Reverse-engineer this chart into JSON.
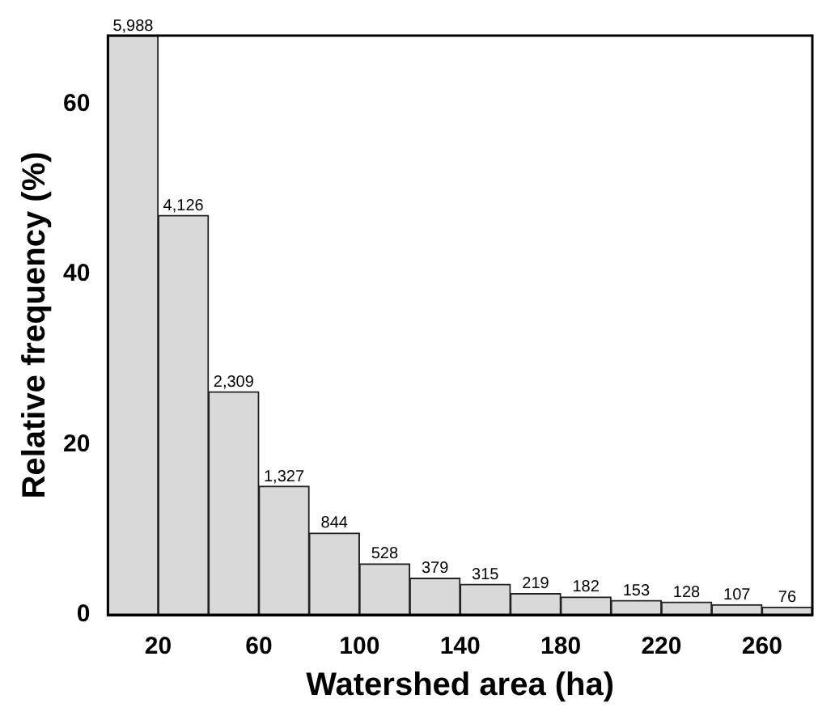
{
  "chart_data": {
    "type": "histogram",
    "xlabel": "Watershed area (ha)",
    "ylabel": "Relative frequency (%)",
    "bins": [
      0,
      20,
      40,
      60,
      80,
      100,
      120,
      140,
      160,
      180,
      200,
      220,
      240,
      260,
      280
    ],
    "values": [
      68,
      46.9,
      26.2,
      15.1,
      9.6,
      6.0,
      4.3,
      3.6,
      2.5,
      2.1,
      1.7,
      1.5,
      1.2,
      0.9
    ],
    "annotations": [
      {
        "text": "5,988",
        "x": 10,
        "y": 68
      },
      {
        "text": "4,126",
        "x": 30,
        "y": 46.9
      },
      {
        "text": "2,309",
        "x": 50,
        "y": 26.2
      },
      {
        "text": "1,327",
        "x": 70,
        "y": 15.1
      },
      {
        "text": "844",
        "x": 90,
        "y": 9.6
      },
      {
        "text": "528",
        "x": 110,
        "y": 6.0
      },
      {
        "text": "379",
        "x": 130,
        "y": 4.3
      },
      {
        "text": "315",
        "x": 150,
        "y": 3.6
      },
      {
        "text": "219",
        "x": 170,
        "y": 2.5
      },
      {
        "text": "182",
        "x": 190,
        "y": 2.1
      },
      {
        "text": "153",
        "x": 210,
        "y": 1.7
      },
      {
        "text": "128",
        "x": 230,
        "y": 1.5
      },
      {
        "text": "107",
        "x": 250,
        "y": 1.2
      },
      {
        "text": "76",
        "x": 270,
        "y": 0.9
      }
    ],
    "color": "#d9d9d9",
    "xlim": [
      0,
      280
    ],
    "xticks": [
      20,
      60,
      100,
      140,
      180,
      220,
      260
    ],
    "ylim": [
      0,
      68
    ],
    "yticks": [
      0,
      20,
      40,
      60
    ],
    "grid": false,
    "legend": false
  }
}
